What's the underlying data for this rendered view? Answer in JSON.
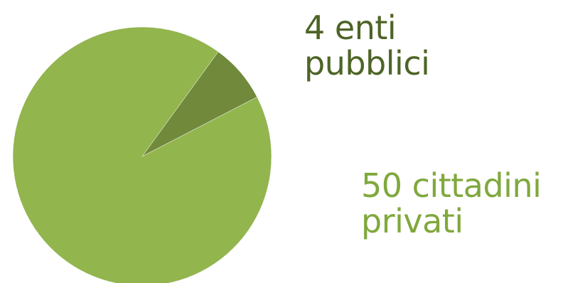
{
  "chart_data": {
    "type": "pie",
    "slices": [
      {
        "value": 4,
        "label_lines": [
          "4  enti",
          "pubblici"
        ],
        "color": "#71893b"
      },
      {
        "value": 50,
        "label_lines": [
          "50 cittadini",
          "privati"
        ],
        "color": "#92b54e"
      }
    ],
    "title": "",
    "legend": "none"
  },
  "label_colors": {
    "public": "#4d6426",
    "private": "#80a83d"
  }
}
